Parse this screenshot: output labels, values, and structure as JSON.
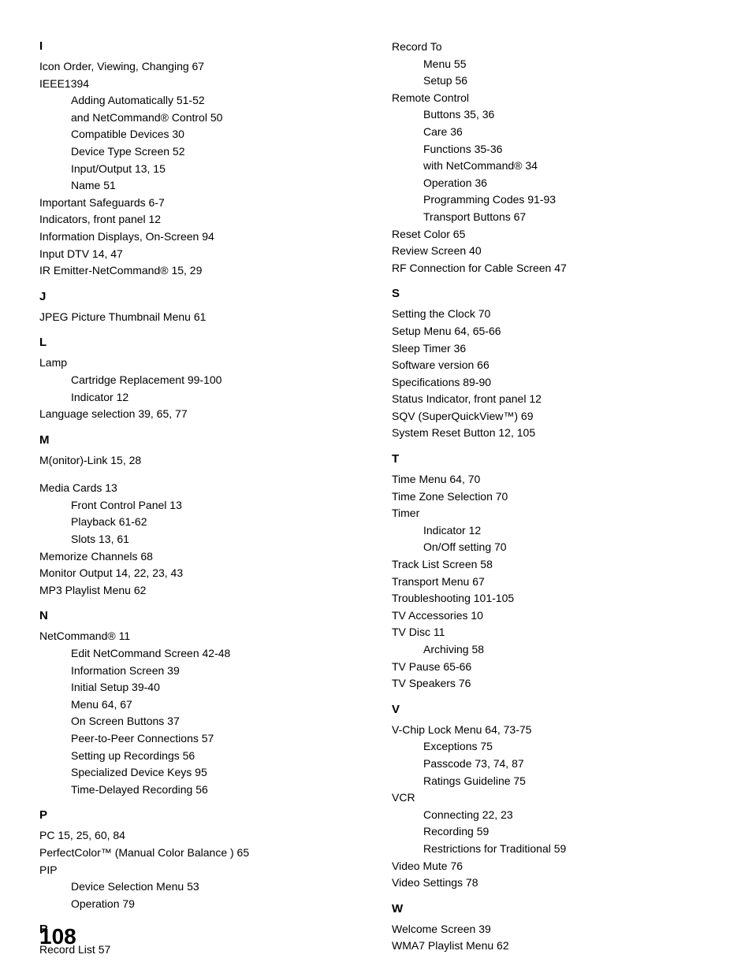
{
  "pageNumber": "108",
  "leftColumn": [
    {
      "type": "letter",
      "text": "I"
    },
    {
      "type": "entry",
      "text": "Icon Order, Viewing, Changing  67"
    },
    {
      "type": "entry",
      "text": "IEEE1394"
    },
    {
      "type": "sub",
      "text": "Adding Automatically  51-52"
    },
    {
      "type": "sub",
      "text": "and NetCommand® Control  50"
    },
    {
      "type": "sub",
      "text": "Compatible Devices  30"
    },
    {
      "type": "sub",
      "text": "Device Type Screen  52"
    },
    {
      "type": "sub",
      "text": "Input/Output  13, 15"
    },
    {
      "type": "sub",
      "text": "Name  51"
    },
    {
      "type": "entry",
      "text": "Important Safeguards  6-7"
    },
    {
      "type": "entry",
      "text": "Indicators, front panel  12"
    },
    {
      "type": "entry",
      "text": "Information Displays, On-Screen  94"
    },
    {
      "type": "entry",
      "text": "Input DTV  14, 47"
    },
    {
      "type": "entry",
      "text": "IR Emitter-NetCommand®  15, 29"
    },
    {
      "type": "letter",
      "text": "J"
    },
    {
      "type": "entry",
      "text": "JPEG Picture Thumbnail Menu  61"
    },
    {
      "type": "letter",
      "text": "L"
    },
    {
      "type": "entry",
      "text": "Lamp"
    },
    {
      "type": "sub",
      "text": "Cartridge Replacement  99-100"
    },
    {
      "type": "sub",
      "text": "Indicator  12"
    },
    {
      "type": "entry",
      "text": "Language selection  39, 65, 77"
    },
    {
      "type": "letter",
      "text": "M"
    },
    {
      "type": "entry",
      "text": "M(onitor)-Link  15, 28"
    },
    {
      "type": "gap"
    },
    {
      "type": "entry",
      "text": "Media Cards  13"
    },
    {
      "type": "sub",
      "text": "Front Control Panel  13"
    },
    {
      "type": "sub",
      "text": "Playback  61-62"
    },
    {
      "type": "sub",
      "text": "Slots  13, 61"
    },
    {
      "type": "entry",
      "text": "Memorize Channels  68"
    },
    {
      "type": "entry",
      "text": "Monitor Output  14, 22, 23, 43"
    },
    {
      "type": "entry",
      "text": "MP3 Playlist Menu  62"
    },
    {
      "type": "letter",
      "text": "N"
    },
    {
      "type": "entry",
      "text": "NetCommand®  11"
    },
    {
      "type": "sub",
      "text": "Edit NetCommand Screen  42-48"
    },
    {
      "type": "sub",
      "text": "Information Screen  39"
    },
    {
      "type": "sub",
      "text": "Initial Setup  39-40"
    },
    {
      "type": "sub",
      "text": "Menu  64, 67"
    },
    {
      "type": "sub",
      "text": "On Screen Buttons  37"
    },
    {
      "type": "sub",
      "text": "Peer-to-Peer Connections  57"
    },
    {
      "type": "sub",
      "text": "Setting up Recordings  56"
    },
    {
      "type": "sub",
      "text": "Specialized Device Keys  95"
    },
    {
      "type": "sub",
      "text": "Time-Delayed Recording  56"
    },
    {
      "type": "letter",
      "text": "P"
    },
    {
      "type": "entry",
      "text": "PC 15, 25, 60, 84"
    },
    {
      "type": "entry",
      "text": "PerfectColor™ (Manual Color Balance ) 65"
    },
    {
      "type": "entry",
      "text": "PIP"
    },
    {
      "type": "sub",
      "text": "Device Selection Menu  53"
    },
    {
      "type": "sub",
      "text": "Operation  79"
    },
    {
      "type": "letter",
      "text": "R"
    },
    {
      "type": "entry",
      "text": "Record List  57"
    }
  ],
  "rightColumn": [
    {
      "type": "entry",
      "text": "Record To"
    },
    {
      "type": "sub",
      "text": "Menu  55"
    },
    {
      "type": "sub",
      "text": "Setup  56"
    },
    {
      "type": "entry",
      "text": "Remote Control"
    },
    {
      "type": "sub",
      "text": "Buttons  35, 36"
    },
    {
      "type": "sub",
      "text": "Care  36"
    },
    {
      "type": "sub",
      "text": "Functions  35-36"
    },
    {
      "type": "sub",
      "text": "with NetCommand®  34"
    },
    {
      "type": "sub",
      "text": "Operation  36"
    },
    {
      "type": "sub",
      "text": "Programming Codes 91-93"
    },
    {
      "type": "sub",
      "text": "Transport Buttons  67"
    },
    {
      "type": "entry",
      "text": "Reset Color  65"
    },
    {
      "type": "entry",
      "text": "Review Screen  40"
    },
    {
      "type": "entry",
      "text": "RF Connection for Cable Screen  47"
    },
    {
      "type": "letter",
      "text": "S"
    },
    {
      "type": "entry",
      "text": "Setting the Clock  70"
    },
    {
      "type": "entry",
      "text": "Setup Menu  64, 65-66"
    },
    {
      "type": "entry",
      "text": "Sleep Timer  36"
    },
    {
      "type": "entry",
      "text": "Software version  66"
    },
    {
      "type": "entry",
      "text": "Specifications  89-90"
    },
    {
      "type": "entry",
      "text": "Status Indicator, front panel  12"
    },
    {
      "type": "entry",
      "text": "SQV (SuperQuickView™)  69"
    },
    {
      "type": "entry",
      "text": "System Reset Button  12, 105"
    },
    {
      "type": "letter",
      "text": "T"
    },
    {
      "type": "entry",
      "text": "Time Menu  64, 70"
    },
    {
      "type": "entry",
      "text": "Time Zone Selection 70"
    },
    {
      "type": "entry",
      "text": "Timer"
    },
    {
      "type": "sub",
      "text": "Indicator  12"
    },
    {
      "type": "sub",
      "text": "On/Off setting 70"
    },
    {
      "type": "entry",
      "text": "Track List Screen  58"
    },
    {
      "type": "entry",
      "text": "Transport Menu  67"
    },
    {
      "type": "entry",
      "text": "Troubleshooting  101-105"
    },
    {
      "type": "entry",
      "text": "TV Accessories  10"
    },
    {
      "type": "entry",
      "text": "TV Disc  11"
    },
    {
      "type": "sub",
      "text": "Archiving  58"
    },
    {
      "type": "entry",
      "text": "TV Pause  65-66"
    },
    {
      "type": "entry",
      "text": "TV Speakers  76"
    },
    {
      "type": "letter",
      "text": "V"
    },
    {
      "type": "entry",
      "text": "V-Chip Lock Menu  64, 73-75"
    },
    {
      "type": "sub",
      "text": "Exceptions  75"
    },
    {
      "type": "sub",
      "text": "Passcode  73, 74, 87"
    },
    {
      "type": "sub",
      "text": "Ratings Guideline  75"
    },
    {
      "type": "entry",
      "text": "VCR"
    },
    {
      "type": "sub",
      "text": "Connecting  22, 23"
    },
    {
      "type": "sub",
      "text": "Recording  59"
    },
    {
      "type": "sub",
      "text": "Restrictions for Traditional  59"
    },
    {
      "type": "entry",
      "text": "Video Mute  76"
    },
    {
      "type": "entry",
      "text": "Video Settings  78"
    },
    {
      "type": "letter",
      "text": "W"
    },
    {
      "type": "entry",
      "text": "Welcome Screen  39"
    },
    {
      "type": "entry",
      "text": "WMA7 Playlist Menu  62"
    }
  ]
}
